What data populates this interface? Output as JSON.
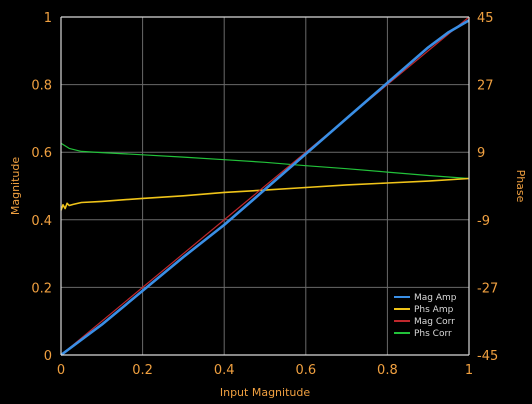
{
  "chart_data": {
    "type": "line",
    "title": "",
    "xlabel": "Input Magnitude",
    "ylabel": "Magnitude",
    "y2label": "Phase",
    "xlim": [
      0,
      1
    ],
    "ylim": [
      0,
      1
    ],
    "y2lim": [
      -45,
      45
    ],
    "x_ticks": [
      "0",
      "0.2",
      "0.4",
      "0.6",
      "0.8",
      "1"
    ],
    "y_ticks": [
      "0",
      "0.2",
      "0.4",
      "0.6",
      "0.8",
      "1"
    ],
    "y2_ticks": [
      "-45",
      "-27",
      "-9",
      "9",
      "27",
      "45"
    ],
    "grid": true,
    "legend_position": "bottom-right",
    "background": "#000000",
    "axis_color": "#d9d9d9",
    "tick_color": "#f0a040",
    "series": [
      {
        "name": "Mag Amp",
        "axis": "left",
        "color": "#3a8fe6",
        "x": [
          0,
          0.1,
          0.2,
          0.3,
          0.4,
          0.5,
          0.6,
          0.7,
          0.8,
          0.9,
          0.95,
          1.0
        ],
        "y": [
          0,
          0.09,
          0.19,
          0.29,
          0.385,
          0.49,
          0.595,
          0.7,
          0.805,
          0.91,
          0.955,
          0.99
        ]
      },
      {
        "name": "Phs Amp",
        "axis": "right",
        "color": "#f0c419",
        "x": [
          0,
          0.005,
          0.01,
          0.015,
          0.02,
          0.03,
          0.05,
          0.1,
          0.2,
          0.3,
          0.4,
          0.5,
          0.6,
          0.7,
          0.8,
          0.9,
          1.0
        ],
        "y": [
          -6.5,
          -5.0,
          -6.0,
          -4.6,
          -5.2,
          -4.9,
          -4.4,
          -4.1,
          -3.3,
          -2.6,
          -1.7,
          -1.1,
          -0.4,
          0.3,
          0.8,
          1.3,
          2.0
        ]
      },
      {
        "name": "Mag Corr",
        "axis": "left",
        "color": "#c0282d",
        "x": [
          0,
          0.5,
          1.0
        ],
        "y": [
          0,
          0.5,
          1.0
        ]
      },
      {
        "name": "Phs Corr",
        "axis": "right",
        "color": "#22c23a",
        "x": [
          0,
          0.02,
          0.05,
          0.1,
          0.2,
          0.3,
          0.4,
          0.5,
          0.6,
          0.7,
          0.8,
          0.9,
          1.0
        ],
        "y": [
          11.4,
          10.0,
          9.2,
          8.9,
          8.3,
          7.7,
          7.0,
          6.3,
          5.4,
          4.6,
          3.7,
          2.8,
          2.0
        ]
      }
    ]
  }
}
